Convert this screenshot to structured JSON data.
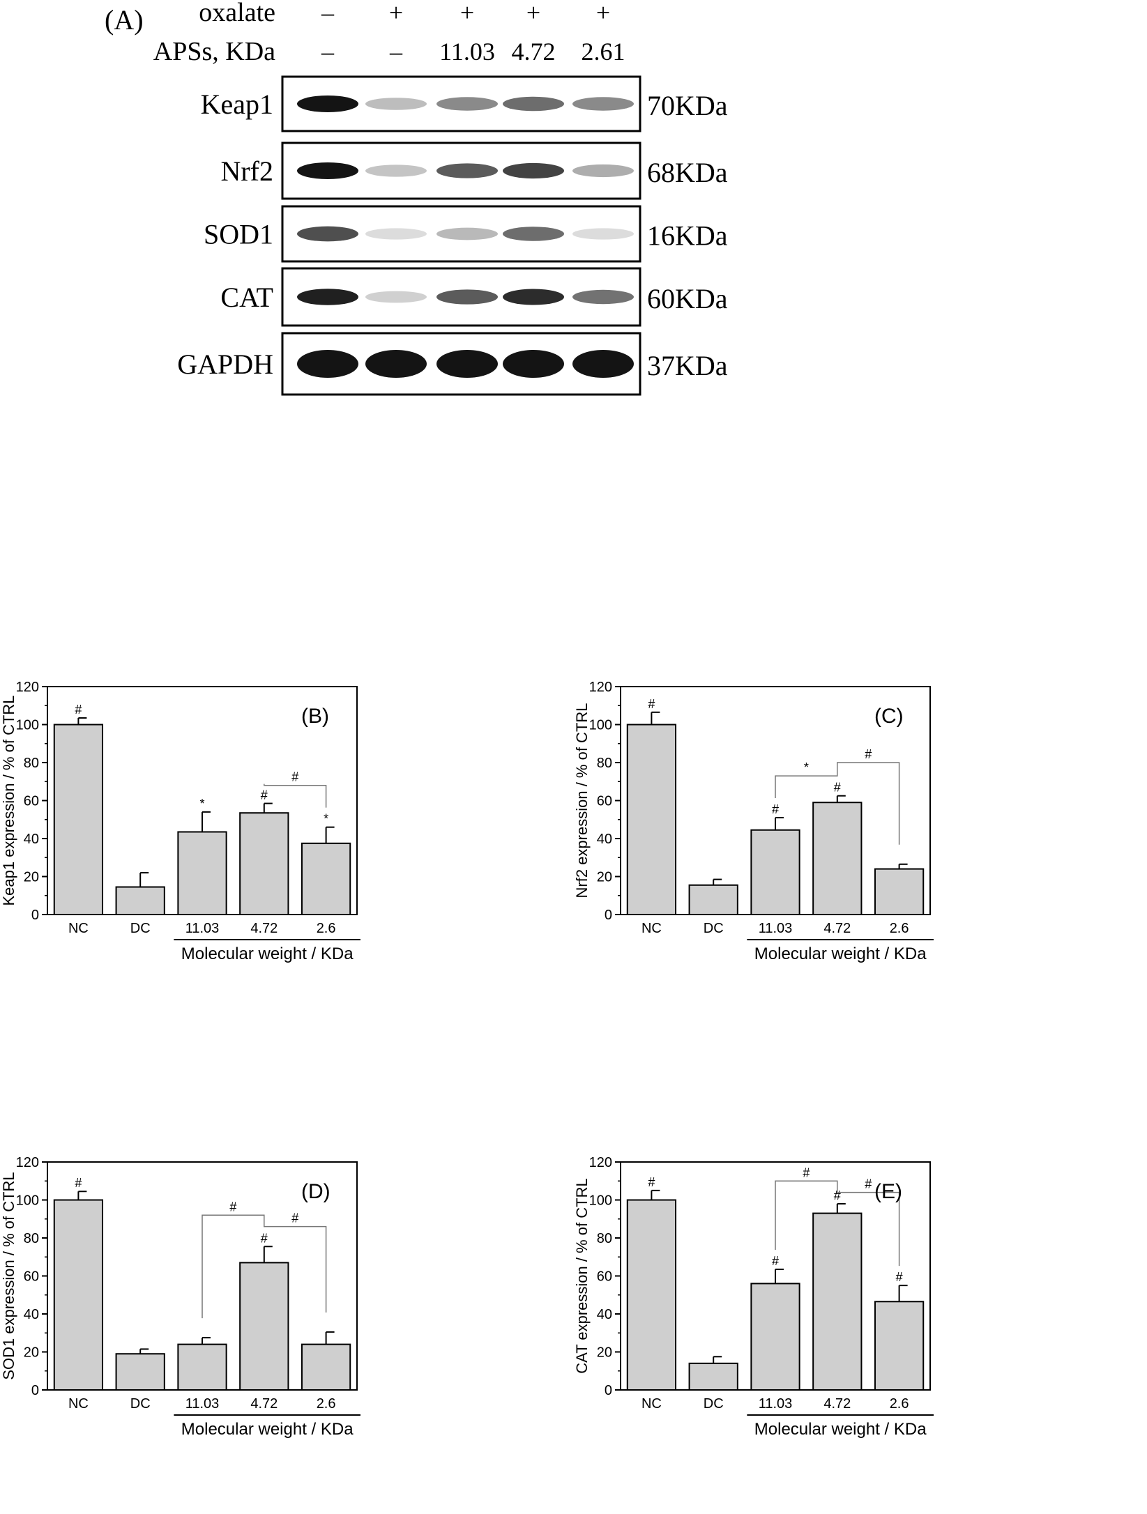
{
  "panel_a": {
    "label": "(A)",
    "header_rows": [
      {
        "label": "oxalate",
        "values": [
          "–",
          "+",
          "+",
          "+",
          "+"
        ]
      },
      {
        "label": "APSs, KDa",
        "values": [
          "–",
          "–",
          "11.03",
          "4.72",
          "2.61"
        ]
      }
    ],
    "blots": [
      {
        "protein": "Keap1",
        "size": "70KDa",
        "intensity": [
          1.0,
          0.28,
          0.5,
          0.62,
          0.5
        ]
      },
      {
        "protein": "Nrf2",
        "size": "68KDa",
        "intensity": [
          1.0,
          0.25,
          0.7,
          0.8,
          0.35
        ]
      },
      {
        "protein": "SOD1",
        "size": "16KDa",
        "intensity": [
          0.75,
          0.15,
          0.3,
          0.62,
          0.15
        ]
      },
      {
        "protein": "CAT",
        "size": "60KDa",
        "intensity": [
          0.95,
          0.2,
          0.7,
          0.9,
          0.6
        ]
      },
      {
        "protein": "GAPDH",
        "size": "37KDa",
        "intensity": [
          1.0,
          1.0,
          1.0,
          1.0,
          1.0
        ]
      }
    ]
  },
  "chart_data": [
    {
      "type": "bar",
      "panel_label": "(B)",
      "categories": [
        "NC",
        "DC",
        "11.03",
        "4.72",
        "2.6"
      ],
      "values": [
        100,
        14.5,
        43.5,
        53.5,
        37.5
      ],
      "errors": [
        3.5,
        7.5,
        10.5,
        5,
        8.5
      ],
      "markers": [
        "#",
        "",
        "*",
        "#",
        "*"
      ],
      "brackets": [
        {
          "from": 3,
          "to": 4,
          "label": "#",
          "y": 68
        }
      ],
      "ylabel": "Keap1 expression / % of CTRL",
      "xgroup_label": "Molecular weight / KDa",
      "yticks": [
        0,
        20,
        40,
        60,
        80,
        100,
        120
      ],
      "ylim": [
        0,
        120
      ]
    },
    {
      "type": "bar",
      "panel_label": "(C)",
      "categories": [
        "NC",
        "DC",
        "11.03",
        "4.72",
        "2.6"
      ],
      "values": [
        100,
        15.5,
        44.5,
        59,
        24
      ],
      "errors": [
        6.5,
        3,
        6.5,
        3.5,
        2.5
      ],
      "markers": [
        "#",
        "",
        "#",
        "#",
        ""
      ],
      "brackets": [
        {
          "from": 2,
          "to": 3,
          "label": "*",
          "y": 73
        },
        {
          "from": 3,
          "to": 4,
          "label": "#",
          "y": 80
        }
      ],
      "ylabel": "Nrf2 expression / % of CTRL",
      "xgroup_label": "Molecular weight / KDa",
      "yticks": [
        0,
        20,
        40,
        60,
        80,
        100,
        120
      ],
      "ylim": [
        0,
        120
      ]
    },
    {
      "type": "bar",
      "panel_label": "(D)",
      "categories": [
        "NC",
        "DC",
        "11.03",
        "4.72",
        "2.6"
      ],
      "values": [
        100,
        19,
        24,
        67,
        24
      ],
      "errors": [
        4.5,
        2.5,
        3.5,
        8.5,
        6.5
      ],
      "markers": [
        "#",
        "",
        "",
        "#",
        ""
      ],
      "brackets": [
        {
          "from": 2,
          "to": 3,
          "label": "#",
          "y": 92
        },
        {
          "from": 3,
          "to": 4,
          "label": "#",
          "y": 86
        }
      ],
      "ylabel": "SOD1 expression / % of CTRL",
      "xgroup_label": "Molecular weight / KDa",
      "yticks": [
        0,
        20,
        40,
        60,
        80,
        100,
        120
      ],
      "ylim": [
        0,
        120
      ]
    },
    {
      "type": "bar",
      "panel_label": "(E)",
      "categories": [
        "NC",
        "DC",
        "11.03",
        "4.72",
        "2.6"
      ],
      "values": [
        100,
        14,
        56,
        93,
        46.5
      ],
      "errors": [
        5,
        3.5,
        7.5,
        5,
        8.5
      ],
      "markers": [
        "#",
        "",
        "#",
        "#",
        "#"
      ],
      "brackets": [
        {
          "from": 2,
          "to": 3,
          "label": "#",
          "y": 110
        },
        {
          "from": 3,
          "to": 4,
          "label": "#",
          "y": 104
        }
      ],
      "ylabel": "CAT expression / % of CTRL",
      "xgroup_label": "Molecular weight / KDa",
      "yticks": [
        0,
        20,
        40,
        60,
        80,
        100,
        120
      ],
      "ylim": [
        0,
        120
      ]
    }
  ]
}
